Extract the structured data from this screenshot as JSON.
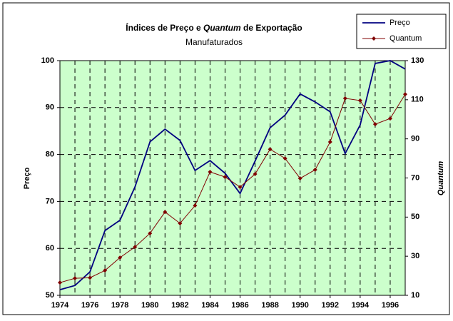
{
  "chart_data": {
    "type": "line",
    "title": [
      "Índices de Preço e ",
      "Quantum",
      " de Exportação"
    ],
    "subtitle": "Manufaturados",
    "ylabel": "Preço",
    "y2label": "Quantum",
    "x": [
      1974,
      1975,
      1976,
      1977,
      1978,
      1979,
      1980,
      1981,
      1982,
      1983,
      1984,
      1985,
      1986,
      1987,
      1988,
      1989,
      1990,
      1991,
      1992,
      1993,
      1994,
      1995,
      1996,
      1997
    ],
    "xlim": [
      1974,
      1997
    ],
    "xticks": [
      1974,
      1976,
      1978,
      1980,
      1982,
      1984,
      1986,
      1988,
      1990,
      1992,
      1994,
      1996
    ],
    "ylim": [
      50,
      100
    ],
    "yticks": [
      50,
      60,
      70,
      80,
      90,
      100
    ],
    "y2lim": [
      10,
      130
    ],
    "y2ticks": [
      10,
      30,
      50,
      70,
      90,
      110,
      130
    ],
    "grid": true,
    "legend": "top-right",
    "series": [
      {
        "name": "Preço",
        "color": "#000080",
        "values": [
          51.2,
          52.1,
          55.0,
          63.8,
          66.0,
          73.1,
          82.7,
          85.4,
          83.0,
          76.6,
          78.7,
          76.0,
          71.7,
          78.6,
          85.7,
          88.4,
          92.9,
          91.2,
          89.1,
          80.2,
          86.3,
          99.4,
          100,
          98.2
        ]
      },
      {
        "name": "Quantum",
        "color": "#800000",
        "axis": "y2",
        "values": [
          16.5,
          18.7,
          19,
          22.7,
          29.3,
          34.7,
          41.7,
          52.6,
          46.8,
          55.9,
          73.1,
          70.5,
          65.4,
          72,
          84.7,
          80,
          69.8,
          74.2,
          88.4,
          110.7,
          109.6,
          97.5,
          100.4,
          112.8
        ]
      }
    ]
  }
}
